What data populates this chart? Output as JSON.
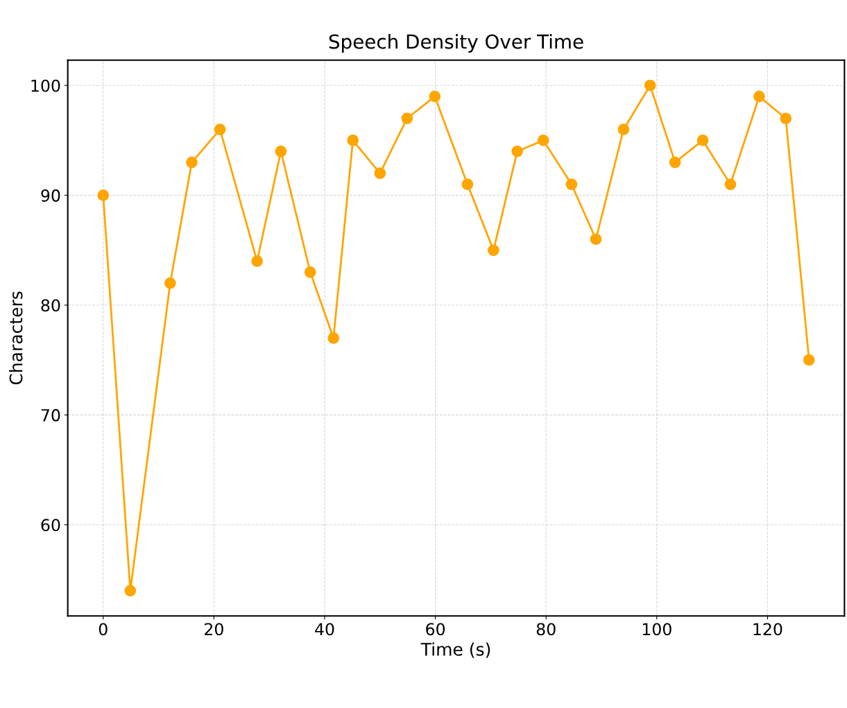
{
  "chart_data": {
    "type": "line",
    "title": "Speech Density Over Time",
    "xlabel": "Time (s)",
    "ylabel": "Characters",
    "x": [
      0,
      4.9,
      12.1,
      16,
      21.1,
      27.8,
      32.1,
      37.4,
      41.6,
      45.1,
      50,
      54.9,
      59.9,
      65.8,
      70.5,
      74.8,
      79.5,
      84.6,
      89,
      94,
      98.8,
      103.3,
      108.3,
      113.3,
      118.5,
      123.3,
      127.5
    ],
    "series": [
      {
        "color": "#ffa500",
        "values": [
          90,
          54,
          82,
          93,
          96,
          84,
          94,
          83,
          77,
          95,
          92,
          97,
          99,
          91,
          85,
          94,
          95,
          91,
          86,
          96,
          100,
          93,
          95,
          91,
          99,
          97,
          75
        ]
      }
    ],
    "xlim": [
      -6.4,
      133.9
    ],
    "ylim": [
      51.7,
      102.3
    ],
    "xticks": [
      0,
      20,
      40,
      60,
      80,
      100,
      120
    ],
    "yticks": [
      60,
      70,
      80,
      90,
      100
    ],
    "grid": true,
    "marker": "circle",
    "line_style": "solid"
  }
}
